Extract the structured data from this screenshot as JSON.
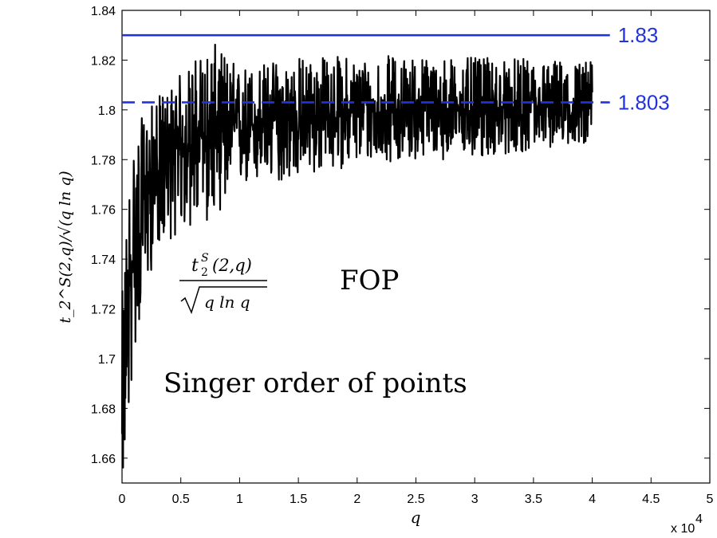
{
  "chart_data": {
    "type": "line",
    "title": "",
    "xlabel": "q",
    "ylabel": "t_2^S(2,q)/√(q ln q)",
    "x_multiplier_label": "x 10",
    "x_multiplier_exponent": "4",
    "xlim": [
      0,
      50000
    ],
    "ylim": [
      1.65,
      1.84
    ],
    "x_ticks": [
      "0",
      "0.5",
      "1",
      "1.5",
      "2",
      "2.5",
      "3",
      "3.5",
      "4",
      "4.5",
      "5"
    ],
    "x_tick_values": [
      0,
      5000,
      10000,
      15000,
      20000,
      25000,
      30000,
      35000,
      40000,
      45000,
      50000
    ],
    "y_ticks": [
      "1.66",
      "1.68",
      "1.7",
      "1.72",
      "1.74",
      "1.76",
      "1.78",
      "1.8",
      "1.82",
      "1.84"
    ],
    "y_tick_values": [
      1.66,
      1.68,
      1.7,
      1.72,
      1.74,
      1.76,
      1.78,
      1.8,
      1.82,
      1.84
    ],
    "grid": false,
    "series": [
      {
        "color": "#000000",
        "x_start": 0,
        "x_end": 40000,
        "trend": {
          "x": [
            0,
            500,
            1000,
            2000,
            3000,
            5000,
            7500,
            10000,
            15000,
            20000,
            25000,
            30000,
            40000
          ],
          "y": [
            1.66,
            1.72,
            1.745,
            1.765,
            1.775,
            1.785,
            1.79,
            1.793,
            1.797,
            1.799,
            1.8,
            1.8,
            1.801
          ]
        },
        "band": {
          "x": [
            0,
            500,
            1000,
            2000,
            3000,
            5000,
            7500,
            10000,
            15000,
            20000,
            25000,
            30000,
            40000
          ],
          "low": [
            1.65,
            1.668,
            1.7,
            1.725,
            1.745,
            1.75,
            1.755,
            1.768,
            1.772,
            1.778,
            1.78,
            1.78,
            1.787
          ],
          "high": [
            1.725,
            1.77,
            1.79,
            1.8,
            1.805,
            1.815,
            1.828,
            1.818,
            1.822,
            1.822,
            1.822,
            1.821,
            1.82
          ]
        }
      }
    ],
    "reference_lines": [
      {
        "value": 1.83,
        "label": "1.83",
        "style": "solid",
        "color": "#2233dd",
        "x_start": 0,
        "x_end": 41500
      },
      {
        "value": 1.803,
        "label": "1.803",
        "style": "dashed",
        "color": "#2233dd",
        "x_start": 0,
        "x_end": 41500
      }
    ],
    "annotations": {
      "fraction_numerator": "t",
      "fraction_numerator_sup": "S",
      "fraction_numerator_sub": "2",
      "fraction_numerator_args": "(2,q)",
      "fraction_denominator": "q ln q",
      "fop": "FOP",
      "singer": "Singer order of points"
    }
  }
}
